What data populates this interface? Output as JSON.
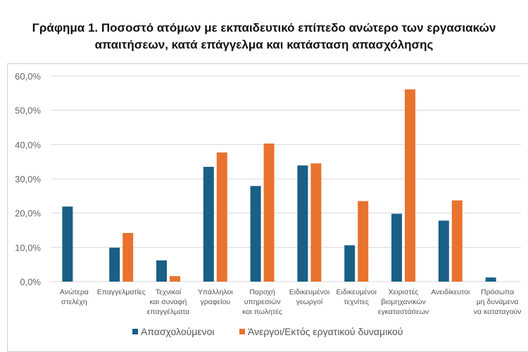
{
  "chart_data": {
    "type": "bar",
    "title": "Γράφημα 1. Ποσοστό ατόμων με εκπαιδευτικό επίπεδο ανώτερο των εργασιακών απαιτήσεων, κατά επάγγελμα και κατάσταση απασχόλησης",
    "title_lines": [
      "Γράφημα 1. Ποσοστό ατόμων με εκπαιδευτικό επίπεδο ανώτερο των εργασιακών",
      "απαιτήσεων, κατά επάγγελμα και κατάσταση απασχόλησης"
    ],
    "categories": [
      [
        "Ανώτερα",
        "στελέχη"
      ],
      [
        "Επαγγελματίες"
      ],
      [
        "Τεχνικοί",
        "και συναφή",
        "επαγγέλματα"
      ],
      [
        "Υπάλληλοι",
        "γραφείου"
      ],
      [
        "Παροχή",
        "υπηρεσιών",
        "και πωλητές"
      ],
      [
        "Ειδικευμένοι",
        "γεωργοί"
      ],
      [
        "Ειδικευμένοι",
        "τεχνίτες"
      ],
      [
        "Χειριστές",
        "βιομηχανικών",
        "εγκαταστάσεων"
      ],
      [
        "Ανειδίκευτοι"
      ],
      [
        "Πρόσωπα",
        "μη δυνάμενα",
        "να καταταγούν"
      ]
    ],
    "series": [
      {
        "name": "Απασχολούμενοι",
        "color": "#1a5f86",
        "values": [
          21.9,
          9.9,
          6.2,
          33.5,
          27.9,
          33.9,
          10.6,
          19.8,
          17.8,
          1.2
        ]
      },
      {
        "name": "Άνεργοι/Εκτός εργατικού δυναμικού",
        "color": "#e8732f",
        "values": [
          0,
          14.2,
          1.6,
          37.7,
          40.3,
          34.5,
          23.5,
          56.1,
          23.7,
          0
        ]
      }
    ],
    "ylim": [
      0,
      60
    ],
    "yticks": [
      "0,0%",
      "10,0%",
      "20,0%",
      "30,0%",
      "40,0%",
      "50,0%",
      "60,0%"
    ],
    "grid": true,
    "legend": "bottom"
  }
}
